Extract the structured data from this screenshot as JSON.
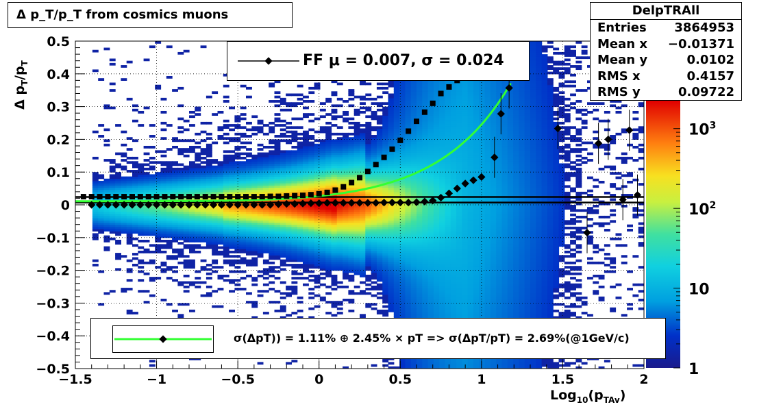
{
  "title": "Δ p_T/p_T from cosmics muons",
  "stats": {
    "name": "DelpTRAll",
    "rows": [
      {
        "label": "Entries",
        "value": "3864953"
      },
      {
        "label": "Mean x",
        "value": "−0.01371"
      },
      {
        "label": "Mean y",
        "value": "0.0102"
      },
      {
        "label": "RMS x",
        "value": "0.4157"
      },
      {
        "label": "RMS y",
        "value": "0.09722"
      }
    ]
  },
  "legend_top": "FF μ =  0.007, σ =   0.024",
  "legend_bottom": "σ(ΔpT)) =  1.11% ⊕  2.45% × pT => σ(ΔpT/pT) =  2.69%(@1GeV/c)",
  "axes": {
    "ylabel_main": "Δ p",
    "ylabel_sub1": "T",
    "ylabel_mid": "/p",
    "ylabel_sub2": "T",
    "xlabel_main": "Log",
    "xlabel_sub": "10",
    "xlabel_paren": "(p",
    "xlabel_sub2": "TAv",
    "xlabel_close": ")"
  },
  "colors": {
    "fit_curve": "#33ff33",
    "markers": "#000000",
    "colz_low": "#1a1a8c",
    "colz_high": "#e00000"
  },
  "chart_data": {
    "type": "heatmap",
    "xlim": [
      -1.5,
      2
    ],
    "ylim": [
      -0.5,
      0.5
    ],
    "x_ticks": [
      "−1.5",
      "−1",
      "−0.5",
      "0",
      "0.5",
      "1",
      "1.5",
      "2"
    ],
    "y_ticks": [
      "−0.5",
      "−0.4",
      "−0.3",
      "−0.2",
      "−0.1",
      "0",
      "0.1",
      "0.2",
      "0.3",
      "0.4",
      "0.5"
    ],
    "z_scale": "log",
    "z_ticks": [
      "1",
      "10",
      "10^2",
      "10^3"
    ],
    "grid": true,
    "sigma_points": {
      "x": [
        -1.45,
        -1.4,
        -1.35,
        -1.3,
        -1.25,
        -1.2,
        -1.15,
        -1.1,
        -1.05,
        -1.0,
        -0.95,
        -0.9,
        -0.85,
        -0.8,
        -0.75,
        -0.7,
        -0.65,
        -0.6,
        -0.55,
        -0.5,
        -0.45,
        -0.4,
        -0.35,
        -0.3,
        -0.25,
        -0.2,
        -0.15,
        -0.1,
        -0.05,
        0.0,
        0.05,
        0.1,
        0.15,
        0.2,
        0.25,
        0.3,
        0.35,
        0.4,
        0.45,
        0.5,
        0.55,
        0.6,
        0.65,
        0.7,
        0.75,
        0.8,
        0.85
      ],
      "y": [
        0.025,
        0.025,
        0.025,
        0.025,
        0.025,
        0.025,
        0.025,
        0.025,
        0.025,
        0.025,
        0.025,
        0.025,
        0.025,
        0.025,
        0.025,
        0.025,
        0.025,
        0.025,
        0.025,
        0.025,
        0.025,
        0.025,
        0.025,
        0.026,
        0.026,
        0.027,
        0.028,
        0.029,
        0.031,
        0.034,
        0.038,
        0.045,
        0.055,
        0.068,
        0.083,
        0.102,
        0.123,
        0.145,
        0.17,
        0.197,
        0.225,
        0.255,
        0.283,
        0.31,
        0.34,
        0.36,
        0.38
      ]
    },
    "mean_points": {
      "x": [
        -1.4,
        -1.35,
        -1.3,
        -1.25,
        -1.2,
        -1.15,
        -1.1,
        -1.05,
        -1.0,
        -0.95,
        -0.9,
        -0.85,
        -0.8,
        -0.75,
        -0.7,
        -0.65,
        -0.6,
        -0.55,
        -0.5,
        -0.45,
        -0.4,
        -0.35,
        -0.3,
        -0.25,
        -0.2,
        -0.15,
        -0.1,
        -0.05,
        0.0,
        0.05,
        0.1,
        0.15,
        0.2,
        0.25,
        0.3,
        0.35,
        0.4,
        0.45,
        0.5,
        0.55,
        0.6,
        0.65,
        0.7,
        0.75,
        0.8,
        0.85,
        0.9,
        0.95,
        1.0,
        1.08,
        1.12,
        1.17,
        1.47,
        1.65,
        1.72,
        1.78,
        1.87,
        1.91,
        1.96
      ],
      "y": [
        0.0,
        0.0,
        0.0,
        0.0,
        0.0,
        0.0,
        0.0,
        0.0,
        0.0,
        0.0,
        0.0,
        0.0,
        0.0,
        0.0,
        0.0,
        0.0,
        0.0,
        0.0,
        0.0,
        0.0,
        0.0,
        0.0,
        0.0,
        0.002,
        0.003,
        0.003,
        0.004,
        0.005,
        0.005,
        0.006,
        0.006,
        0.006,
        0.006,
        0.006,
        0.006,
        0.006,
        0.007,
        0.007,
        0.007,
        0.007,
        0.008,
        0.01,
        0.013,
        0.022,
        0.035,
        0.05,
        0.065,
        0.075,
        0.085,
        0.145,
        0.278,
        0.357,
        0.233,
        -0.085,
        0.188,
        0.2,
        0.016,
        0.228,
        0.03
      ]
    },
    "fit_curve": {
      "sigma0": 0.0111,
      "slope": 0.0245
    },
    "hlines": [
      0.007,
      0.024
    ]
  }
}
